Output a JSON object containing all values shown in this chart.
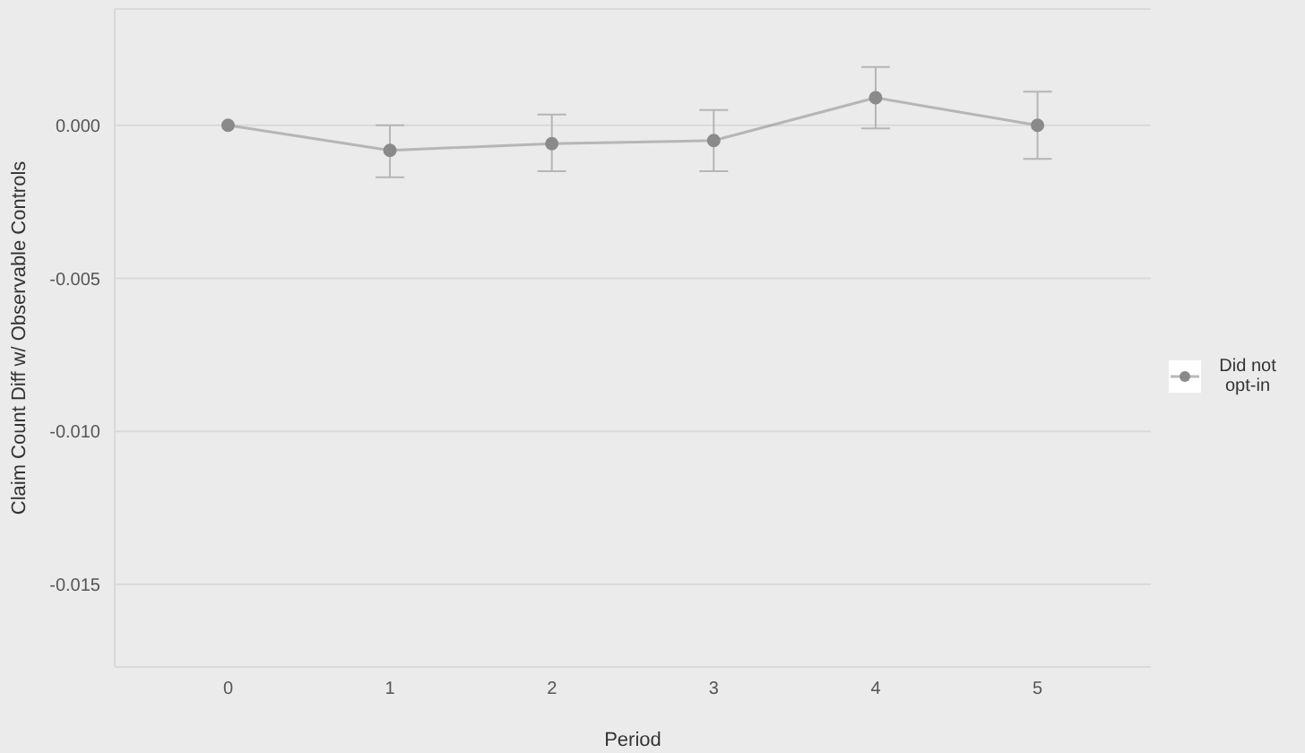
{
  "chart_data": {
    "type": "line",
    "xlabel": "Period",
    "ylabel": "Claim Count Diff w/ Observable Controls",
    "categories": [
      "0",
      "1",
      "2",
      "3",
      "4",
      "5"
    ],
    "series": [
      {
        "name": "Did not opt-in",
        "color": "#8a8a8a",
        "values": [
          0,
          -0.00082,
          -0.0006,
          -0.0005,
          0.0009,
          0
        ],
        "errors": [
          null,
          [
            -0.0017,
            0.0
          ],
          [
            -0.0015,
            0.00035
          ],
          [
            -0.0015,
            0.0005
          ],
          [
            -0.0001,
            0.0019
          ],
          [
            -0.0011,
            0.0011
          ]
        ]
      }
    ],
    "ylim": [
      -0.0177,
      0.0038
    ],
    "yticks": [
      {
        "value": -0.015,
        "label": "-0.015"
      },
      {
        "value": -0.01,
        "label": "-0.010"
      },
      {
        "value": -0.005,
        "label": "-0.005"
      },
      {
        "value": 0,
        "label": "0.000"
      }
    ],
    "grid": "y",
    "legend": "right",
    "marker": "circle",
    "line_style": "solid"
  }
}
